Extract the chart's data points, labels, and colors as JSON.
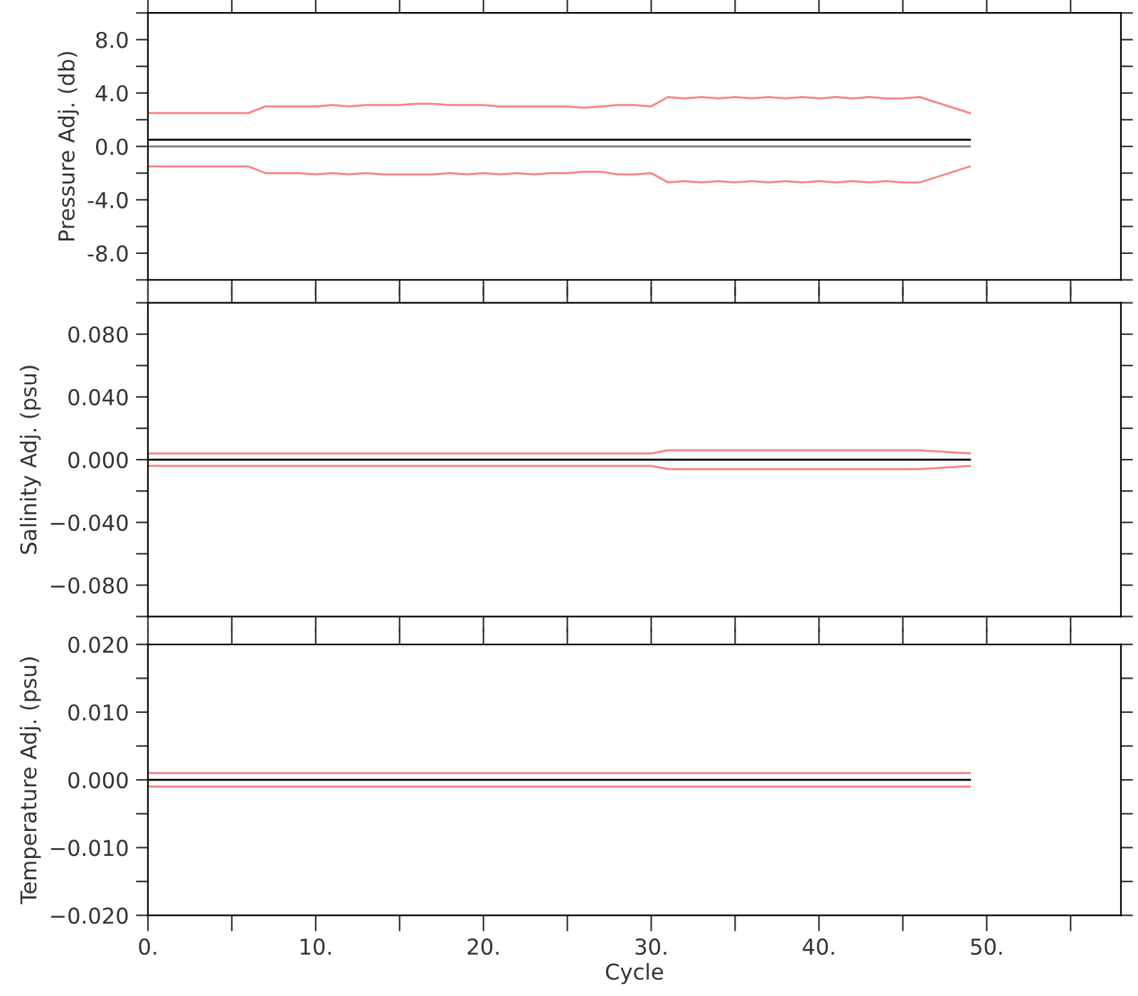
{
  "chart_data": [
    {
      "type": "line",
      "ylabel": "Pressure Adj. (db)",
      "tick_labels": "y",
      "xlim": [
        0,
        58
      ],
      "xticks": [
        {
          "value": 0,
          "label": null
        },
        {
          "value": 5,
          "label": null
        },
        {
          "value": 10,
          "label": null
        },
        {
          "value": 15,
          "label": null
        },
        {
          "value": 20,
          "label": null
        },
        {
          "value": 25,
          "label": null
        },
        {
          "value": 30,
          "label": null
        },
        {
          "value": 35,
          "label": null
        },
        {
          "value": 40,
          "label": null
        },
        {
          "value": 45,
          "label": null
        },
        {
          "value": 50,
          "label": null
        },
        {
          "value": 55,
          "label": null
        }
      ],
      "ylim": [
        -10,
        10
      ],
      "yticks": [
        {
          "value": -10,
          "label": null
        },
        {
          "value": -8,
          "label": "-8.0"
        },
        {
          "value": -6,
          "label": null
        },
        {
          "value": -4,
          "label": "-4.0"
        },
        {
          "value": -2,
          "label": null
        },
        {
          "value": 0,
          "label": "0.0"
        },
        {
          "value": 2,
          "label": null
        },
        {
          "value": 4,
          "label": "4.0"
        },
        {
          "value": 6,
          "label": null
        },
        {
          "value": 8,
          "label": "8.0"
        },
        {
          "value": 10,
          "label": null
        }
      ],
      "series": [
        {
          "color": "#808080",
          "x": [
            0,
            49
          ],
          "values": [
            0,
            0
          ]
        },
        {
          "color": "#000000",
          "x": [
            0,
            49
          ],
          "values": [
            0.5,
            0.5
          ]
        },
        {
          "color": "#ff8080",
          "x": [
            0,
            6,
            7,
            8,
            9,
            10,
            11,
            12,
            13,
            14,
            15,
            16,
            17,
            18,
            19,
            20,
            21,
            22,
            23,
            24,
            25,
            26,
            27,
            28,
            29,
            30,
            31,
            32,
            33,
            34,
            35,
            36,
            37,
            38,
            39,
            40,
            41,
            42,
            43,
            44,
            45,
            46,
            49
          ],
          "values": [
            2.5,
            2.5,
            3.0,
            3.0,
            3.0,
            3.0,
            3.1,
            3.0,
            3.1,
            3.1,
            3.1,
            3.2,
            3.2,
            3.1,
            3.1,
            3.1,
            3.0,
            3.0,
            3.0,
            3.0,
            3.0,
            2.9,
            3.0,
            3.1,
            3.1,
            3.0,
            3.7,
            3.6,
            3.7,
            3.6,
            3.7,
            3.6,
            3.7,
            3.6,
            3.7,
            3.6,
            3.7,
            3.6,
            3.7,
            3.6,
            3.6,
            3.7,
            2.5
          ]
        },
        {
          "color": "#ff8080",
          "x": [
            0,
            6,
            7,
            8,
            9,
            10,
            11,
            12,
            13,
            14,
            15,
            16,
            17,
            18,
            19,
            20,
            21,
            22,
            23,
            24,
            25,
            26,
            27,
            28,
            29,
            30,
            31,
            32,
            33,
            34,
            35,
            36,
            37,
            38,
            39,
            40,
            41,
            42,
            43,
            44,
            45,
            46,
            49
          ],
          "values": [
            -1.5,
            -1.5,
            -2.0,
            -2.0,
            -2.0,
            -2.1,
            -2.0,
            -2.1,
            -2.0,
            -2.1,
            -2.1,
            -2.1,
            -2.1,
            -2.0,
            -2.1,
            -2.0,
            -2.1,
            -2.0,
            -2.1,
            -2.0,
            -2.0,
            -1.9,
            -1.9,
            -2.1,
            -2.1,
            -2.0,
            -2.7,
            -2.6,
            -2.7,
            -2.6,
            -2.7,
            -2.6,
            -2.7,
            -2.6,
            -2.7,
            -2.6,
            -2.7,
            -2.6,
            -2.7,
            -2.6,
            -2.7,
            -2.7,
            -1.5
          ]
        }
      ]
    },
    {
      "type": "line",
      "ylabel": "Salinity Adj. (psu)",
      "tick_labels": "y",
      "xlim": [
        0,
        58
      ],
      "xticks": [
        {
          "value": 0,
          "label": null
        },
        {
          "value": 5,
          "label": null
        },
        {
          "value": 10,
          "label": null
        },
        {
          "value": 15,
          "label": null
        },
        {
          "value": 20,
          "label": null
        },
        {
          "value": 25,
          "label": null
        },
        {
          "value": 30,
          "label": null
        },
        {
          "value": 35,
          "label": null
        },
        {
          "value": 40,
          "label": null
        },
        {
          "value": 45,
          "label": null
        },
        {
          "value": 50,
          "label": null
        },
        {
          "value": 55,
          "label": null
        }
      ],
      "ylim": [
        -0.1,
        0.1
      ],
      "yticks": [
        {
          "value": -0.1,
          "label": null
        },
        {
          "value": -0.08,
          "label": "−0.080"
        },
        {
          "value": -0.06,
          "label": null
        },
        {
          "value": -0.04,
          "label": "−0.040"
        },
        {
          "value": -0.02,
          "label": null
        },
        {
          "value": 0,
          "label": "0.000"
        },
        {
          "value": 0.02,
          "label": null
        },
        {
          "value": 0.04,
          "label": "0.040"
        },
        {
          "value": 0.06,
          "label": null
        },
        {
          "value": 0.08,
          "label": "0.080"
        },
        {
          "value": 0.1,
          "label": null
        }
      ],
      "series": [
        {
          "color": "#000000",
          "x": [
            0,
            49
          ],
          "values": [
            0,
            0
          ]
        },
        {
          "color": "#ff8080",
          "x": [
            0,
            30,
            31,
            46,
            49
          ],
          "values": [
            0.004,
            0.004,
            0.006,
            0.006,
            0.004
          ]
        },
        {
          "color": "#ff8080",
          "x": [
            0,
            30,
            31,
            46,
            49
          ],
          "values": [
            -0.004,
            -0.004,
            -0.006,
            -0.006,
            -0.004
          ]
        }
      ]
    },
    {
      "type": "line",
      "xlabel": "Cycle",
      "ylabel": "Temperature Adj. (psu)",
      "xlim": [
        0,
        58
      ],
      "xticks": [
        {
          "value": 0,
          "label": "0."
        },
        {
          "value": 5,
          "label": null
        },
        {
          "value": 10,
          "label": "10."
        },
        {
          "value": 15,
          "label": null
        },
        {
          "value": 20,
          "label": "20."
        },
        {
          "value": 25,
          "label": null
        },
        {
          "value": 30,
          "label": "30."
        },
        {
          "value": 35,
          "label": null
        },
        {
          "value": 40,
          "label": "40."
        },
        {
          "value": 45,
          "label": null
        },
        {
          "value": 50,
          "label": "50."
        },
        {
          "value": 55,
          "label": null
        }
      ],
      "ylim": [
        -0.02,
        0.02
      ],
      "yticks": [
        {
          "value": -0.02,
          "label": "−0.020"
        },
        {
          "value": -0.015,
          "label": null
        },
        {
          "value": -0.01,
          "label": "−0.010"
        },
        {
          "value": -0.005,
          "label": null
        },
        {
          "value": 0,
          "label": "0.000"
        },
        {
          "value": 0.005,
          "label": null
        },
        {
          "value": 0.01,
          "label": "0.010"
        },
        {
          "value": 0.015,
          "label": null
        },
        {
          "value": 0.02,
          "label": "0.020"
        }
      ],
      "series": [
        {
          "color": "#000000",
          "x": [
            0,
            49
          ],
          "values": [
            0,
            0
          ]
        },
        {
          "color": "#ff8080",
          "x": [
            0,
            49
          ],
          "values": [
            0.001,
            0.001
          ]
        },
        {
          "color": "#ff8080",
          "x": [
            0,
            49
          ],
          "values": [
            -0.001,
            -0.001
          ]
        }
      ]
    }
  ]
}
